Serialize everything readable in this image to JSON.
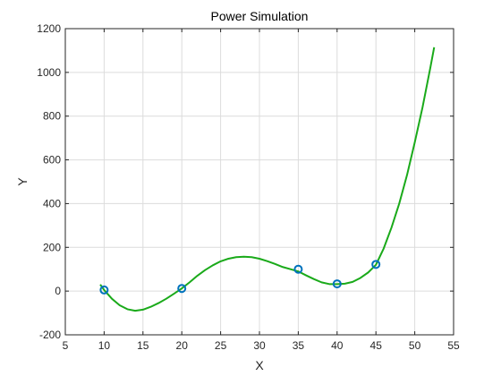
{
  "chart_data": {
    "type": "line",
    "title": "Power Simulation",
    "xlabel": "X",
    "ylabel": "Y",
    "xlim": [
      5,
      55
    ],
    "ylim": [
      -200,
      1200
    ],
    "x_ticks": [
      5,
      10,
      15,
      20,
      25,
      30,
      35,
      40,
      45,
      50,
      55
    ],
    "y_ticks": [
      -200,
      0,
      200,
      400,
      600,
      800,
      1000,
      1200
    ],
    "grid": true,
    "series": [
      {
        "style": "line",
        "color": "#1aaa1a",
        "x": [
          9.5,
          10,
          11,
          12,
          13,
          14,
          15,
          16,
          17,
          18,
          19,
          20,
          21,
          22,
          23,
          24,
          25,
          26,
          27,
          28,
          29,
          30,
          31,
          32,
          33,
          34,
          35,
          36,
          37,
          38,
          39,
          40,
          41,
          42,
          43,
          44,
          45,
          46,
          47,
          48,
          49,
          50,
          51,
          52,
          52.5
        ],
        "y": [
          30,
          5,
          -35,
          -65,
          -83,
          -90,
          -85,
          -72,
          -55,
          -35,
          -12,
          12,
          40,
          70,
          96,
          118,
          136,
          148,
          155,
          157,
          155,
          148,
          137,
          124,
          110,
          100,
          90,
          72,
          55,
          40,
          32,
          32,
          34,
          42,
          60,
          85,
          120,
          195,
          290,
          400,
          530,
          680,
          840,
          1020,
          1115
        ]
      },
      {
        "style": "markers",
        "marker": "circle",
        "color": "#0072bd",
        "x": [
          10,
          20,
          35,
          40,
          45
        ],
        "y": [
          5,
          12,
          100,
          33,
          122
        ]
      }
    ]
  }
}
